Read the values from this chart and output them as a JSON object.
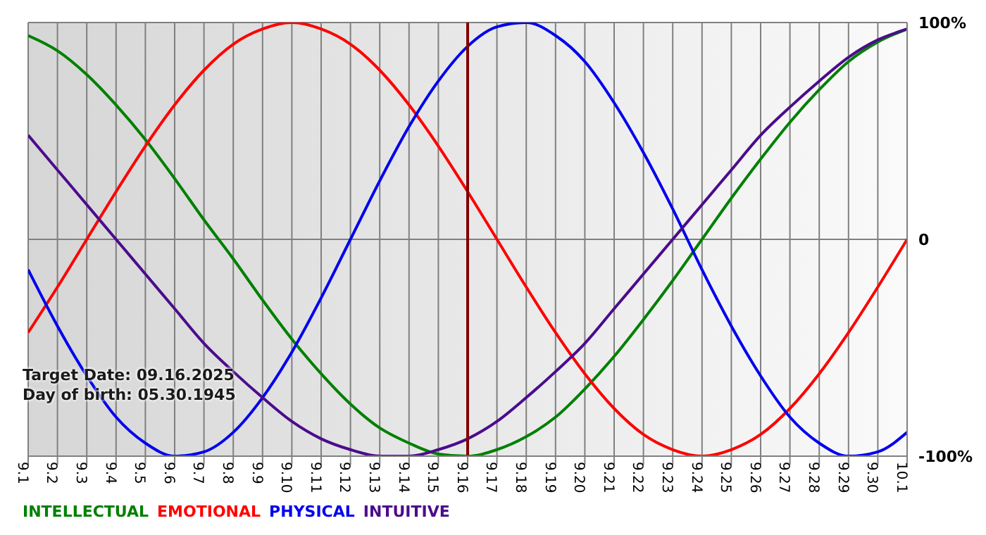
{
  "chart_data": {
    "type": "line",
    "categories": [
      "9.1",
      "9.2",
      "9.3",
      "9.4",
      "9.5",
      "9.6",
      "9.7",
      "9.8",
      "9.9",
      "9.10",
      "9.11",
      "9.12",
      "9.13",
      "9.14",
      "9.15",
      "9.16",
      "9.17",
      "9.18",
      "9.19",
      "9.20",
      "9.21",
      "9.22",
      "9.23",
      "9.24",
      "9.25",
      "9.26",
      "9.27",
      "9.28",
      "9.29",
      "9.30",
      "10.1"
    ],
    "series": [
      {
        "name": "INTELLECTUAL",
        "color": "#008000",
        "values": [
          94,
          87,
          76,
          62,
          46,
          28,
          9,
          -9,
          -28,
          -46,
          -62,
          -76,
          -87,
          -94,
          -99,
          -100,
          -97,
          -91,
          -82,
          -69,
          -54,
          -37,
          -19,
          0,
          19,
          37,
          54,
          69,
          82,
          91,
          97
        ]
      },
      {
        "name": "EMOTIONAL",
        "color": "#ff0000",
        "values": [
          -43,
          -22,
          0,
          22,
          43,
          62,
          78,
          90,
          97,
          100,
          97,
          90,
          78,
          62,
          43,
          22,
          0,
          -22,
          -43,
          -62,
          -78,
          -90,
          -97,
          -100,
          -97,
          -90,
          -78,
          -62,
          -43,
          -22,
          0
        ]
      },
      {
        "name": "PHYSICAL",
        "color": "#0000ee",
        "values": [
          -14,
          -40,
          -63,
          -82,
          -94,
          -100,
          -98,
          -89,
          -73,
          -52,
          -27,
          0,
          27,
          52,
          73,
          89,
          98,
          100,
          94,
          82,
          63,
          40,
          14,
          -14,
          -40,
          -63,
          -82,
          -94,
          -100,
          -98,
          -89
        ]
      },
      {
        "name": "INTUITIVE",
        "color": "#4b0c8c",
        "values": [
          48,
          32,
          16,
          0,
          -16,
          -32,
          -48,
          -61,
          -73,
          -84,
          -92,
          -97,
          -100,
          -100,
          -97,
          -92,
          -84,
          -73,
          -61,
          -48,
          -32,
          -16,
          0,
          16,
          32,
          48,
          61,
          73,
          84,
          92,
          97
        ]
      }
    ],
    "ylim": [
      -100,
      100
    ],
    "yticks": [
      {
        "value": -100,
        "label": "-100%"
      },
      0,
      {
        "value": 100,
        "label": "100%"
      }
    ],
    "grid": true,
    "legend": "bottom",
    "marker": "none",
    "line_style": "solid",
    "ref_lines": [
      {
        "axis": "x",
        "value": "9.16",
        "color": "#800000"
      }
    ],
    "annotations": [
      "Target Date: 09.16.2025",
      "Day of birth: 05.30.1945"
    ]
  }
}
